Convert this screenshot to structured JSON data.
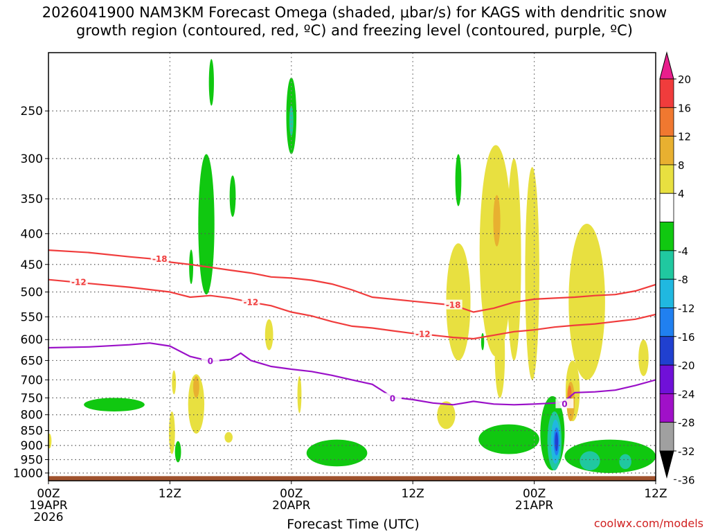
{
  "title_line1": "2026041900 NAM3KM Forecast Omega (shaded, μbar/s) for KAGS with dendritic snow",
  "title_line2": "growth region (contoured, red, ºC) and freezing level (contoured, purple, ºC)",
  "credit": "coolwx.com/models",
  "chart_data": {
    "type": "heatmap",
    "title": "2026041900 NAM3KM Forecast Omega (shaded, μbar/s) for KAGS with dendritic snow growth region (contoured, red, ºC) and freezing level (contoured, purple, ºC)",
    "xlabel": "Forecast Time (UTC)",
    "ylabel": "",
    "x_range_hours": [
      0,
      60
    ],
    "y_range_hPa": [
      1030,
      200
    ],
    "y_scale": "log-pressure",
    "grid": true,
    "x_ticks": [
      {
        "hour": 0,
        "label": "00Z",
        "sub1": "19APR",
        "sub2": "2026"
      },
      {
        "hour": 12,
        "label": "12Z",
        "sub1": "",
        "sub2": ""
      },
      {
        "hour": 24,
        "label": "00Z",
        "sub1": "20APR",
        "sub2": ""
      },
      {
        "hour": 36,
        "label": "12Z",
        "sub1": "",
        "sub2": ""
      },
      {
        "hour": 48,
        "label": "00Z",
        "sub1": "21APR",
        "sub2": ""
      },
      {
        "hour": 60,
        "label": "12Z",
        "sub1": "",
        "sub2": ""
      }
    ],
    "y_ticks": [
      250,
      300,
      350,
      400,
      450,
      500,
      550,
      600,
      650,
      700,
      750,
      800,
      850,
      900,
      950,
      1000
    ],
    "colorbar": {
      "labels": [
        "20",
        "16",
        "12",
        "8",
        "4",
        "-4",
        "-8",
        "-12",
        "-16",
        "-20",
        "-24",
        "-28",
        "-32",
        "-36"
      ],
      "colors": [
        "#e81e8c",
        "#f03c3c",
        "#f07830",
        "#e8b030",
        "#e8e040",
        "#ffffff",
        "#10c810",
        "#20c8a0",
        "#20b8e0",
        "#2080f0",
        "#2040d0",
        "#7010d8",
        "#a010c8",
        "#a0a0a0",
        "#000000"
      ]
    },
    "contours": [
      {
        "name": "-18",
        "color": "#f03c3c",
        "points": [
          [
            0,
            426
          ],
          [
            4,
            430
          ],
          [
            8,
            437
          ],
          [
            10,
            440
          ],
          [
            12,
            446
          ],
          [
            14,
            450
          ],
          [
            16,
            455
          ],
          [
            18,
            460
          ],
          [
            20,
            465
          ],
          [
            22,
            472
          ],
          [
            24,
            474
          ],
          [
            26,
            478
          ],
          [
            28,
            485
          ],
          [
            30,
            496
          ],
          [
            32,
            510
          ],
          [
            34,
            514
          ],
          [
            36,
            518
          ],
          [
            38,
            522
          ],
          [
            40,
            526
          ],
          [
            42,
            540
          ],
          [
            44,
            532
          ],
          [
            46,
            520
          ],
          [
            48,
            514
          ],
          [
            50,
            512
          ],
          [
            52,
            510
          ],
          [
            54,
            507
          ],
          [
            56,
            505
          ],
          [
            58,
            498
          ],
          [
            60,
            486
          ]
        ],
        "label_positions": [
          [
            11,
            441
          ],
          [
            40,
            526
          ]
        ]
      },
      {
        "name": "-12",
        "color": "#f03c3c",
        "points": [
          [
            0,
            477
          ],
          [
            4,
            484
          ],
          [
            8,
            491
          ],
          [
            12,
            500
          ],
          [
            14,
            510
          ],
          [
            16,
            507
          ],
          [
            18,
            512
          ],
          [
            20,
            520
          ],
          [
            22,
            527
          ],
          [
            24,
            540
          ],
          [
            26,
            548
          ],
          [
            28,
            560
          ],
          [
            30,
            570
          ],
          [
            32,
            574
          ],
          [
            34,
            580
          ],
          [
            36,
            586
          ],
          [
            38,
            590
          ],
          [
            40,
            595
          ],
          [
            42,
            598
          ],
          [
            44,
            590
          ],
          [
            46,
            582
          ],
          [
            48,
            578
          ],
          [
            50,
            572
          ],
          [
            52,
            568
          ],
          [
            54,
            565
          ],
          [
            56,
            560
          ],
          [
            58,
            555
          ],
          [
            60,
            545
          ]
        ],
        "label_positions": [
          [
            3,
            482
          ],
          [
            20,
            520
          ],
          [
            37,
            588
          ]
        ]
      },
      {
        "name": "0",
        "color": "#9a10c8",
        "points": [
          [
            0,
            619
          ],
          [
            4,
            617
          ],
          [
            8,
            612
          ],
          [
            10,
            608
          ],
          [
            12,
            615
          ],
          [
            14,
            640
          ],
          [
            16,
            652
          ],
          [
            18,
            647
          ],
          [
            19,
            632
          ],
          [
            20,
            650
          ],
          [
            22,
            665
          ],
          [
            24,
            672
          ],
          [
            26,
            678
          ],
          [
            28,
            688
          ],
          [
            30,
            700
          ],
          [
            32,
            712
          ],
          [
            34,
            748
          ],
          [
            36,
            755
          ],
          [
            38,
            765
          ],
          [
            40,
            770
          ],
          [
            42,
            760
          ],
          [
            44,
            768
          ],
          [
            46,
            770
          ],
          [
            48,
            768
          ],
          [
            50,
            765
          ],
          [
            51,
            760
          ],
          [
            52,
            735
          ],
          [
            54,
            733
          ],
          [
            56,
            728
          ],
          [
            58,
            715
          ],
          [
            60,
            700
          ]
        ],
        "label_positions": [
          [
            16,
            652
          ],
          [
            34,
            752
          ],
          [
            51,
            768
          ]
        ]
      }
    ],
    "shaded_regions": [
      {
        "level": "-8",
        "color": "#10c810",
        "t_center": 16.1,
        "p_center": 225,
        "t_halfwidth": 0.25,
        "p_top": 205,
        "p_bottom": 245
      },
      {
        "level": "-8",
        "color": "#10c810",
        "t_center": 24.0,
        "p_center": 255,
        "t_halfwidth": 0.5,
        "p_top": 220,
        "p_bottom": 295
      },
      {
        "level": "-12",
        "color": "#20c8a0",
        "t_center": 24.0,
        "p_center": 260,
        "t_halfwidth": 0.2,
        "p_top": 245,
        "p_bottom": 275
      },
      {
        "level": "-8",
        "color": "#10c810",
        "t_center": 15.6,
        "p_center": 380,
        "t_halfwidth": 0.8,
        "p_top": 295,
        "p_bottom": 505
      },
      {
        "level": "-8",
        "color": "#10c810",
        "t_center": 18.2,
        "p_center": 345,
        "t_halfwidth": 0.3,
        "p_top": 320,
        "p_bottom": 375
      },
      {
        "level": "-8",
        "color": "#10c810",
        "t_center": 14.1,
        "p_center": 455,
        "t_halfwidth": 0.2,
        "p_top": 425,
        "p_bottom": 485
      },
      {
        "level": "-8",
        "color": "#10c810",
        "t_center": 6.5,
        "p_center": 770,
        "t_halfwidth": 3.0,
        "p_top": 750,
        "p_bottom": 790
      },
      {
        "level": "-8",
        "color": "#10c810",
        "t_center": 12.8,
        "p_center": 915,
        "t_halfwidth": 0.3,
        "p_top": 885,
        "p_bottom": 960
      },
      {
        "level": "-8",
        "color": "#10c810",
        "t_center": 28.5,
        "p_center": 935,
        "t_halfwidth": 3.0,
        "p_top": 880,
        "p_bottom": 975
      },
      {
        "level": "-8",
        "color": "#10c810",
        "t_center": 45.5,
        "p_center": 880,
        "t_halfwidth": 3.0,
        "p_top": 830,
        "p_bottom": 930
      },
      {
        "level": "-8",
        "color": "#10c810",
        "t_center": 55.5,
        "p_center": 950,
        "t_halfwidth": 4.5,
        "p_top": 880,
        "p_bottom": 1000
      },
      {
        "level": "-8",
        "color": "#10c810",
        "t_center": 49.8,
        "p_center": 850,
        "t_halfwidth": 1.2,
        "p_top": 745,
        "p_bottom": 990
      },
      {
        "level": "-8",
        "color": "#10c810",
        "t_center": 40.5,
        "p_center": 325,
        "t_halfwidth": 0.3,
        "p_top": 295,
        "p_bottom": 360
      },
      {
        "level": "-8",
        "color": "#10c810",
        "t_center": 42.9,
        "p_center": 605,
        "t_halfwidth": 0.15,
        "p_top": 585,
        "p_bottom": 625
      },
      {
        "level": "-12",
        "color": "#20c8a0",
        "t_center": 50.0,
        "p_center": 900,
        "t_halfwidth": 0.7,
        "p_top": 790,
        "p_bottom": 990
      },
      {
        "level": "-12",
        "color": "#20c8a0",
        "t_center": 53.5,
        "p_center": 955,
        "t_halfwidth": 1.0,
        "p_top": 920,
        "p_bottom": 990
      },
      {
        "level": "-12",
        "color": "#20c8a0",
        "t_center": 57.0,
        "p_center": 960,
        "t_halfwidth": 0.6,
        "p_top": 930,
        "p_bottom": 985
      },
      {
        "level": "-16",
        "color": "#20b8e0",
        "t_center": 50.1,
        "p_center": 880,
        "t_halfwidth": 0.45,
        "p_top": 815,
        "p_bottom": 965
      },
      {
        "level": "-20",
        "color": "#2080f0",
        "t_center": 50.2,
        "p_center": 880,
        "t_halfwidth": 0.28,
        "p_top": 840,
        "p_bottom": 935
      },
      {
        "level": "-24",
        "color": "#2040d0",
        "t_center": 50.2,
        "p_center": 885,
        "t_halfwidth": 0.16,
        "p_top": 855,
        "p_bottom": 920
      },
      {
        "level": "4",
        "color": "#e8e040",
        "t_center": 44.2,
        "p_center": 440,
        "t_halfwidth": 1.6,
        "p_top": 285,
        "p_bottom": 640
      },
      {
        "level": "4",
        "color": "#e8e040",
        "t_center": 40.5,
        "p_center": 520,
        "t_halfwidth": 1.2,
        "p_top": 415,
        "p_bottom": 650
      },
      {
        "level": "4",
        "color": "#e8e040",
        "t_center": 46.0,
        "p_center": 480,
        "t_halfwidth": 0.7,
        "p_top": 300,
        "p_bottom": 650
      },
      {
        "level": "4",
        "color": "#e8e040",
        "t_center": 47.8,
        "p_center": 460,
        "t_halfwidth": 0.7,
        "p_top": 310,
        "p_bottom": 700
      },
      {
        "level": "4",
        "color": "#e8e040",
        "t_center": 44.6,
        "p_center": 620,
        "t_halfwidth": 0.5,
        "p_top": 540,
        "p_bottom": 750
      },
      {
        "level": "4",
        "color": "#e8e040",
        "t_center": 53.2,
        "p_center": 520,
        "t_halfwidth": 1.8,
        "p_top": 385,
        "p_bottom": 700
      },
      {
        "level": "4",
        "color": "#e8e040",
        "t_center": 51.8,
        "p_center": 740,
        "t_halfwidth": 0.7,
        "p_top": 650,
        "p_bottom": 820
      },
      {
        "level": "4",
        "color": "#e8e040",
        "t_center": 58.8,
        "p_center": 640,
        "t_halfwidth": 0.5,
        "p_top": 600,
        "p_bottom": 690
      },
      {
        "level": "4",
        "color": "#e8e040",
        "t_center": 39.3,
        "p_center": 800,
        "t_halfwidth": 0.9,
        "p_top": 760,
        "p_bottom": 845
      },
      {
        "level": "4",
        "color": "#e8e040",
        "t_center": 14.6,
        "p_center": 760,
        "t_halfwidth": 0.8,
        "p_top": 685,
        "p_bottom": 860
      },
      {
        "level": "4",
        "color": "#e8e040",
        "t_center": 12.2,
        "p_center": 860,
        "t_halfwidth": 0.3,
        "p_top": 790,
        "p_bottom": 930
      },
      {
        "level": "4",
        "color": "#e8e040",
        "t_center": 12.4,
        "p_center": 710,
        "t_halfwidth": 0.2,
        "p_top": 675,
        "p_bottom": 740
      },
      {
        "level": "4",
        "color": "#e8e040",
        "t_center": 21.8,
        "p_center": 585,
        "t_halfwidth": 0.4,
        "p_top": 555,
        "p_bottom": 625
      },
      {
        "level": "4",
        "color": "#e8e040",
        "t_center": 24.8,
        "p_center": 740,
        "t_halfwidth": 0.2,
        "p_top": 690,
        "p_bottom": 795
      },
      {
        "level": "4",
        "color": "#e8e040",
        "t_center": 17.8,
        "p_center": 870,
        "t_halfwidth": 0.4,
        "p_top": 855,
        "p_bottom": 890
      },
      {
        "level": "4",
        "color": "#e8e040",
        "t_center": 0.1,
        "p_center": 880,
        "t_halfwidth": 0.2,
        "p_top": 860,
        "p_bottom": 910
      },
      {
        "level": "8",
        "color": "#e8b030",
        "t_center": 14.6,
        "p_center": 715,
        "t_halfwidth": 0.3,
        "p_top": 690,
        "p_bottom": 750
      },
      {
        "level": "8",
        "color": "#e8b030",
        "t_center": 44.3,
        "p_center": 375,
        "t_halfwidth": 0.35,
        "p_top": 345,
        "p_bottom": 420
      },
      {
        "level": "8",
        "color": "#e8b030",
        "t_center": 51.6,
        "p_center": 760,
        "t_halfwidth": 0.4,
        "p_top": 705,
        "p_bottom": 820
      },
      {
        "level": "12",
        "color": "#f07830",
        "t_center": 51.5,
        "p_center": 745,
        "t_halfwidth": 0.2,
        "p_top": 715,
        "p_bottom": 780
      }
    ],
    "terrain_color": "#a0522d"
  }
}
